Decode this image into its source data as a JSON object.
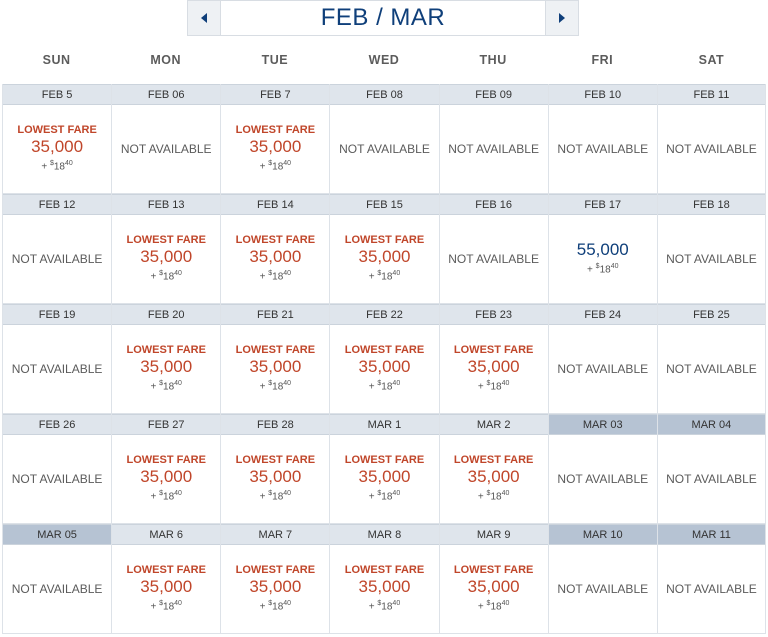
{
  "header": {
    "month_label": "FEB / MAR",
    "prev_icon": "left-triangle-icon",
    "next_icon": "right-triangle-icon"
  },
  "days_of_week": [
    "SUN",
    "MON",
    "TUE",
    "WED",
    "THU",
    "FRI",
    "SAT"
  ],
  "labels": {
    "lowest_fare": "LOWEST FARE",
    "not_available": "NOT AVAILABLE"
  },
  "colors": {
    "accent_orange": "#c0462a",
    "navy": "#0f3f7a",
    "header_light": "#dfe5ec",
    "header_dark": "#b6c3d3"
  },
  "weeks": [
    [
      {
        "date": "FEB 5",
        "status": "lowest",
        "points": "35,000",
        "fee_plus": "+",
        "fee_currency": "$",
        "fee_whole": "18",
        "fee_cents": "40"
      },
      {
        "date": "FEB 06",
        "status": "na"
      },
      {
        "date": "FEB 7",
        "status": "lowest",
        "points": "35,000",
        "fee_plus": "+",
        "fee_currency": "$",
        "fee_whole": "18",
        "fee_cents": "40"
      },
      {
        "date": "FEB 08",
        "status": "na"
      },
      {
        "date": "FEB 09",
        "status": "na"
      },
      {
        "date": "FEB 10",
        "status": "na"
      },
      {
        "date": "FEB 11",
        "status": "na"
      }
    ],
    [
      {
        "date": "FEB 12",
        "status": "na"
      },
      {
        "date": "FEB 13",
        "status": "lowest",
        "points": "35,000",
        "fee_plus": "+",
        "fee_currency": "$",
        "fee_whole": "18",
        "fee_cents": "40"
      },
      {
        "date": "FEB 14",
        "status": "lowest",
        "points": "35,000",
        "fee_plus": "+",
        "fee_currency": "$",
        "fee_whole": "18",
        "fee_cents": "40"
      },
      {
        "date": "FEB 15",
        "status": "lowest",
        "points": "35,000",
        "fee_plus": "+",
        "fee_currency": "$",
        "fee_whole": "18",
        "fee_cents": "40"
      },
      {
        "date": "FEB 16",
        "status": "na"
      },
      {
        "date": "FEB 17",
        "status": "regular",
        "points": "55,000",
        "fee_plus": "+",
        "fee_currency": "$",
        "fee_whole": "18",
        "fee_cents": "40"
      },
      {
        "date": "FEB 18",
        "status": "na"
      }
    ],
    [
      {
        "date": "FEB 19",
        "status": "na"
      },
      {
        "date": "FEB 20",
        "status": "lowest",
        "points": "35,000",
        "fee_plus": "+",
        "fee_currency": "$",
        "fee_whole": "18",
        "fee_cents": "40"
      },
      {
        "date": "FEB 21",
        "status": "lowest",
        "points": "35,000",
        "fee_plus": "+",
        "fee_currency": "$",
        "fee_whole": "18",
        "fee_cents": "40"
      },
      {
        "date": "FEB 22",
        "status": "lowest",
        "points": "35,000",
        "fee_plus": "+",
        "fee_currency": "$",
        "fee_whole": "18",
        "fee_cents": "40"
      },
      {
        "date": "FEB 23",
        "status": "lowest",
        "points": "35,000",
        "fee_plus": "+",
        "fee_currency": "$",
        "fee_whole": "18",
        "fee_cents": "40"
      },
      {
        "date": "FEB 24",
        "status": "na"
      },
      {
        "date": "FEB 25",
        "status": "na"
      }
    ],
    [
      {
        "date": "FEB 26",
        "status": "na"
      },
      {
        "date": "FEB 27",
        "status": "lowest",
        "points": "35,000",
        "fee_plus": "+",
        "fee_currency": "$",
        "fee_whole": "18",
        "fee_cents": "40"
      },
      {
        "date": "FEB 28",
        "status": "lowest",
        "points": "35,000",
        "fee_plus": "+",
        "fee_currency": "$",
        "fee_whole": "18",
        "fee_cents": "40"
      },
      {
        "date": "MAR 1",
        "status": "lowest",
        "points": "35,000",
        "fee_plus": "+",
        "fee_currency": "$",
        "fee_whole": "18",
        "fee_cents": "40"
      },
      {
        "date": "MAR 2",
        "status": "lowest",
        "points": "35,000",
        "fee_plus": "+",
        "fee_currency": "$",
        "fee_whole": "18",
        "fee_cents": "40"
      },
      {
        "date": "MAR 03",
        "status": "na",
        "header_dark": true
      },
      {
        "date": "MAR 04",
        "status": "na",
        "header_dark": true
      }
    ],
    [
      {
        "date": "MAR 05",
        "status": "na",
        "header_dark": true
      },
      {
        "date": "MAR 6",
        "status": "lowest",
        "points": "35,000",
        "fee_plus": "+",
        "fee_currency": "$",
        "fee_whole": "18",
        "fee_cents": "40"
      },
      {
        "date": "MAR 7",
        "status": "lowest",
        "points": "35,000",
        "fee_plus": "+",
        "fee_currency": "$",
        "fee_whole": "18",
        "fee_cents": "40"
      },
      {
        "date": "MAR 8",
        "status": "lowest",
        "points": "35,000",
        "fee_plus": "+",
        "fee_currency": "$",
        "fee_whole": "18",
        "fee_cents": "40"
      },
      {
        "date": "MAR 9",
        "status": "lowest",
        "points": "35,000",
        "fee_plus": "+",
        "fee_currency": "$",
        "fee_whole": "18",
        "fee_cents": "40"
      },
      {
        "date": "MAR 10",
        "status": "na",
        "header_dark": true
      },
      {
        "date": "MAR 11",
        "status": "na",
        "header_dark": true
      }
    ]
  ]
}
